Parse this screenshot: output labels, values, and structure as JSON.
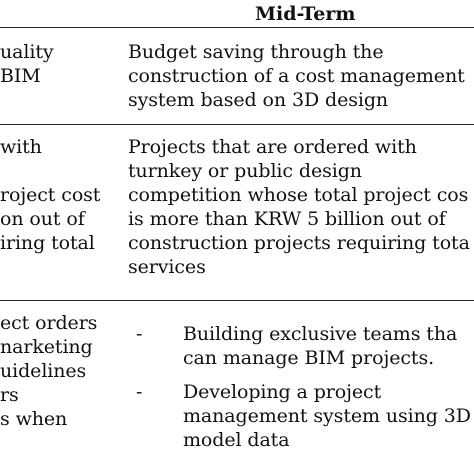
{
  "header": {
    "mid_term": "Mid-Term"
  },
  "rows": [
    {
      "left_lines": [
        "uality",
        "BIM"
      ],
      "right_lines": [
        "Budget saving through the",
        "construction of a cost management",
        "system based on 3D design"
      ]
    },
    {
      "left_lines": [
        "with",
        "",
        "roject cost",
        "on out of",
        "iring total"
      ],
      "right_lines": [
        "Projects that are ordered with",
        "turnkey or public design",
        "competition whose total project cos",
        "is more than KRW 5 billion out of",
        "construction projects requiring tota",
        "services"
      ]
    },
    {
      "left_lines": [
        "ect orders",
        "narketing",
        "uidelines",
        "rs",
        "s when"
      ],
      "bullets": [
        {
          "marker": "-",
          "lines": [
            "Building exclusive teams tha",
            "can manage BIM projects."
          ]
        },
        {
          "marker": "-",
          "lines": [
            "Developing a project",
            "management system using 3D",
            "model data"
          ]
        }
      ]
    }
  ]
}
